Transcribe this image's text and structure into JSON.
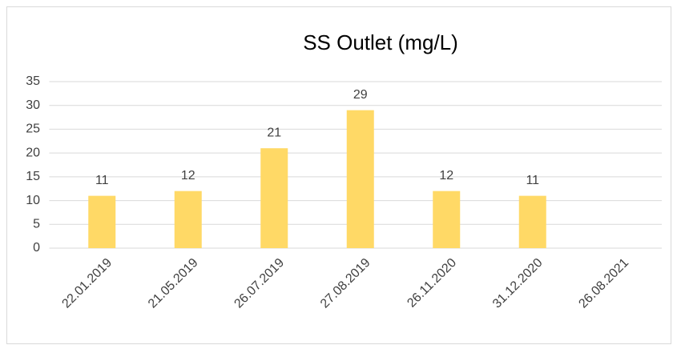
{
  "chart_data": {
    "type": "bar",
    "title": "SS Outlet (mg/L)",
    "categories": [
      "22.01.2019",
      "21.05.2019",
      "26.07.2019",
      "27.08.2019",
      "26.11.2020",
      "31.12.2020",
      "26.08.2021"
    ],
    "values": [
      11,
      12,
      21,
      29,
      12,
      11,
      null
    ],
    "color": "#ffd966",
    "ylim": [
      0,
      35
    ],
    "yticks": [
      0,
      5,
      10,
      15,
      20,
      25,
      30,
      35
    ],
    "grid": true,
    "data_labels": true
  }
}
